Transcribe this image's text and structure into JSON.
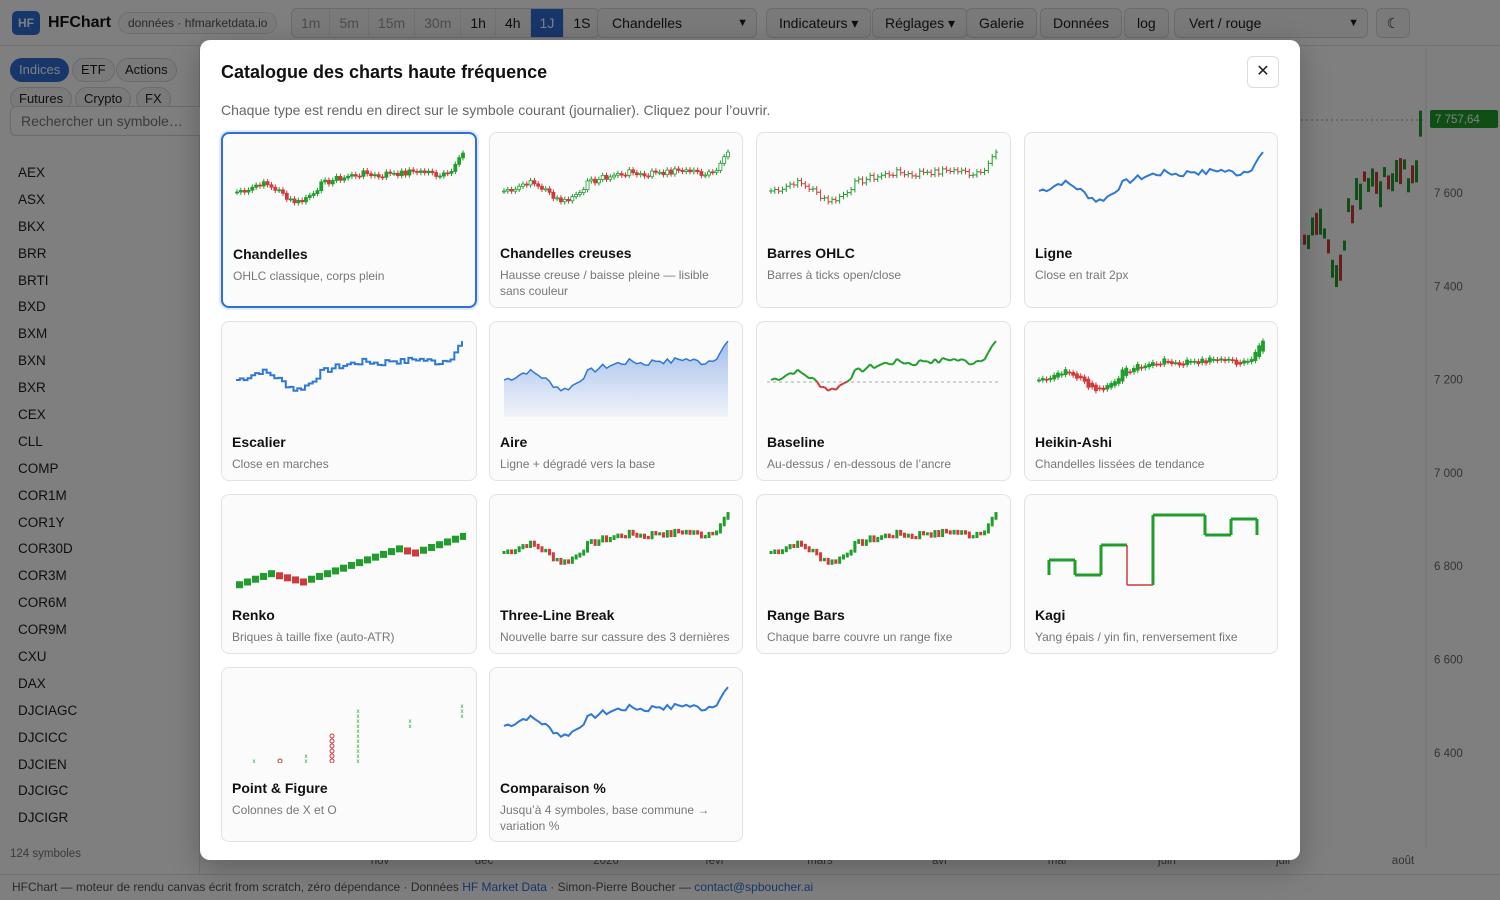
{
  "header": {
    "logo": "HF",
    "brand": "HFChart",
    "source_badge": "données · hfmarketdata.io",
    "timeframes": [
      {
        "label": "1m",
        "enabled": false
      },
      {
        "label": "5m",
        "enabled": false
      },
      {
        "label": "15m",
        "enabled": false
      },
      {
        "label": "30m",
        "enabled": false
      },
      {
        "label": "1h",
        "enabled": true
      },
      {
        "label": "4h",
        "enabled": true
      },
      {
        "label": "1J",
        "enabled": true,
        "active": true
      },
      {
        "label": "1S",
        "enabled": true
      }
    ],
    "chart_type_select": "Chandelles",
    "indicators_label": "Indicateurs ▾",
    "settings_label": "Réglages ▾",
    "gallery_label": "Galerie",
    "data_label": "Données",
    "log_label": "log",
    "color_scheme_select": "Vert / rouge",
    "theme_icon": "moon-icon"
  },
  "sidebar": {
    "categories": [
      "Indices",
      "ETF",
      "Actions",
      "Futures",
      "Crypto",
      "FX"
    ],
    "active_category": "Indices",
    "search_placeholder": "Rechercher un symbole…",
    "symbols": [
      "AEX",
      "ASX",
      "BKX",
      "BRR",
      "BRTI",
      "BXD",
      "BXM",
      "BXN",
      "BXR",
      "CEX",
      "CLL",
      "COMP",
      "COR1M",
      "COR1Y",
      "COR30D",
      "COR3M",
      "COR6M",
      "COR9M",
      "CXU",
      "DAX",
      "DJCIAGC",
      "DJCICC",
      "DJCIEN",
      "DJCIGC",
      "DJCIGR"
    ],
    "count_label": "124 symboles"
  },
  "main_chart": {
    "last_price": "7 757,64",
    "y_ticks": [
      "7 600",
      "7 400",
      "7 200",
      "7 000",
      "6 800",
      "6 600",
      "6 400"
    ],
    "x_ticks": [
      "nov",
      "déc",
      "2026",
      "févr",
      "mars",
      "avr",
      "mai",
      "juin",
      "juil",
      "août"
    ]
  },
  "footer": {
    "text": "HFChart — moteur de rendu canvas écrit from scratch, zéro dépendance · Données ",
    "data_link": "HF Market Data",
    "middle": " · Simon-Pierre Boucher — ",
    "contact": "contact@spboucher.ai"
  },
  "modal": {
    "title": "Catalogue des charts haute fréquence",
    "close": "✕",
    "subtitle": "Chaque type est rendu en direct sur le symbole courant (journalier). Cliquez pour l’ouvrir.",
    "cards": [
      {
        "title": "Chandelles",
        "desc": "OHLC classique, corps plein",
        "kind": "candles",
        "selected": true
      },
      {
        "title": "Chandelles creuses",
        "desc": "Hausse creuse / baisse pleine — lisible sans couleur",
        "kind": "hollow"
      },
      {
        "title": "Barres OHLC",
        "desc": "Barres à ticks open/close",
        "kind": "ohlc"
      },
      {
        "title": "Ligne",
        "desc": "Close en trait 2px",
        "kind": "line"
      },
      {
        "title": "Escalier",
        "desc": "Close en marches",
        "kind": "step"
      },
      {
        "title": "Aire",
        "desc": "Ligne + dégradé vers la base",
        "kind": "area"
      },
      {
        "title": "Baseline",
        "desc": "Au-dessus / en-dessous de l’ancre",
        "kind": "baseline"
      },
      {
        "title": "Heikin-Ashi",
        "desc": "Chandelles lissées de tendance",
        "kind": "heikin"
      },
      {
        "title": "Renko",
        "desc": "Briques à taille fixe (auto-ATR)",
        "kind": "renko"
      },
      {
        "title": "Three-Line Break",
        "desc": "Nouvelle barre sur cassure des 3 dernières",
        "kind": "tlb"
      },
      {
        "title": "Range Bars",
        "desc": "Chaque barre couvre un range fixe",
        "kind": "range"
      },
      {
        "title": "Kagi",
        "desc": "Yang épais / yin fin, renversement fixe",
        "kind": "kagi"
      },
      {
        "title": "Point & Figure",
        "desc": "Colonnes de X et O",
        "kind": "pnf"
      },
      {
        "title": "Comparaison %",
        "desc": "Jusqu’à 4 symboles, base commune → variation %",
        "kind": "compare"
      }
    ]
  },
  "colors": {
    "up": "#1f9e2c",
    "down": "#d03a3a",
    "line": "#2f78d6",
    "accent": "#2f6fd6"
  }
}
